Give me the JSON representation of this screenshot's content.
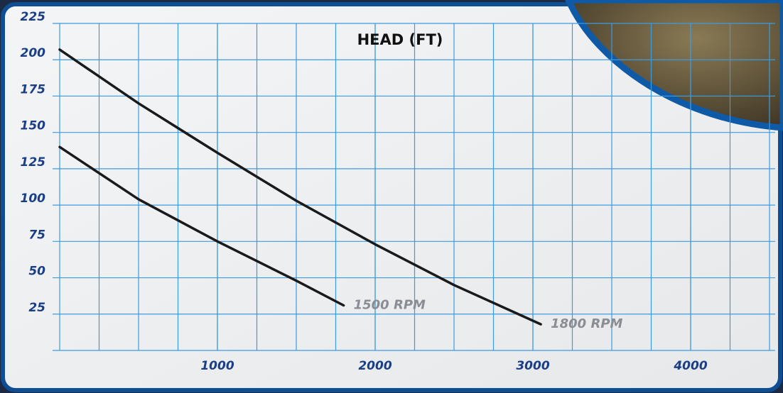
{
  "chart_data": {
    "type": "line",
    "title": "HEAD (FT)",
    "xlim": [
      0,
      4500
    ],
    "xticks": [
      1000,
      2000,
      3000,
      4000
    ],
    "ylim": [
      0,
      225
    ],
    "yticks": [
      25,
      50,
      75,
      100,
      125,
      150,
      175,
      200,
      225
    ],
    "grid": true,
    "series": [
      {
        "name": "1500 RPM",
        "color": "#1a1a1a",
        "x": [
          0,
          500,
          1000,
          1500,
          1800
        ],
        "values": [
          140,
          104,
          75,
          48,
          31
        ]
      },
      {
        "name": "1800 RPM",
        "color": "#1a1a1a",
        "x": [
          0,
          500,
          1000,
          1500,
          2000,
          2500,
          3050
        ],
        "values": [
          207,
          170,
          136,
          103,
          73,
          45,
          18
        ]
      }
    ]
  }
}
